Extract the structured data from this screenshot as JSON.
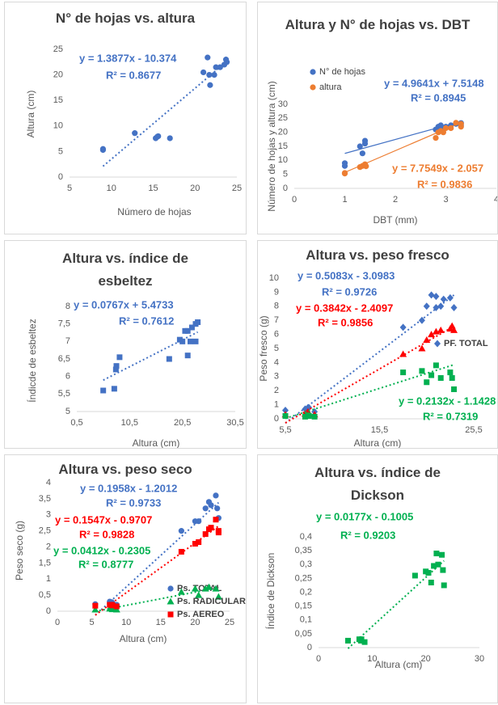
{
  "chart_data": [
    {
      "type": "scatter",
      "title": "N° de hojas vs. altura",
      "x_label": "Número de hojas",
      "y_label": "Altura (cm)",
      "xlim": [
        5,
        25
      ],
      "ylim": [
        0,
        25
      ],
      "xticks": [
        5,
        10,
        15,
        20,
        25
      ],
      "yticks": [
        0,
        5,
        10,
        15,
        20,
        25
      ],
      "series": [
        {
          "color": "#4472c4",
          "marker": "circle",
          "x": [
            9,
            9,
            12.8,
            15.3,
            15.5,
            15.6,
            17,
            21,
            21.5,
            21.7,
            21.8,
            22.3,
            22.5,
            23,
            23.5,
            23.7,
            23.8
          ],
          "values": [
            5.5,
            5.3,
            8.6,
            7.6,
            7.9,
            8.0,
            7.6,
            20.5,
            23.4,
            20,
            18,
            20,
            21.5,
            21.5,
            22,
            23,
            22.5
          ],
          "trendline": {
            "slope": 1.3877,
            "intercept": -10.374,
            "equation": "y = 1.3877x - 10.374",
            "r2": "R² = 0.8677"
          }
        }
      ]
    },
    {
      "type": "scatter",
      "title": "Altura y N° de hojas vs. DBT",
      "x_label": "DBT (mm)",
      "y_label": "Número de hojas y altura (cm)",
      "xlim": [
        0,
        4
      ],
      "ylim": [
        0,
        30
      ],
      "xticks": [
        0,
        1,
        2,
        3,
        4
      ],
      "yticks": [
        0,
        5,
        10,
        15,
        20,
        25,
        30
      ],
      "series": [
        {
          "name": "N° de hojas",
          "color": "#4472c4",
          "marker": "circle",
          "x": [
            1,
            1,
            1.3,
            1.35,
            1.4,
            1.4,
            2.8,
            2.85,
            2.9,
            2.9,
            3,
            3.1,
            3.2,
            3.3,
            3.3
          ],
          "values": [
            9,
            8,
            15,
            12.5,
            17,
            16,
            21,
            22,
            21.5,
            22.5,
            22,
            22.5,
            23,
            22.5,
            23.3
          ],
          "trendline": {
            "slope": 4.9641,
            "intercept": 7.5148,
            "equation": "y = 4.9641x + 7.5148",
            "r2": "R² = 0.8945"
          }
        },
        {
          "name": "altura",
          "color": "#ed7d31",
          "marker": "circle",
          "x": [
            1,
            1,
            1.3,
            1.35,
            1.4,
            1.42,
            2.8,
            2.85,
            2.9,
            2.95,
            3,
            3.1,
            3.2,
            3.3,
            3.3
          ],
          "values": [
            5.5,
            5.3,
            7.6,
            8,
            8.6,
            7.9,
            18,
            20,
            20.5,
            20,
            21.5,
            21.5,
            23.4,
            22,
            23
          ],
          "trendline": {
            "slope": 7.7549,
            "intercept": -2.057,
            "equation": "y = 7.7549x - 2.057",
            "r2": "R² = 0.9836"
          }
        }
      ]
    },
    {
      "type": "scatter",
      "title": "Altura vs. índice de esbeltez",
      "x_label": "Altura (cm)",
      "y_label": "Índicde de esbeltez",
      "xlim": [
        0.5,
        30.5
      ],
      "ylim": [
        5,
        8
      ],
      "xticks": [
        {
          "value": 0.5,
          "label": "0,5"
        },
        {
          "value": 10.5,
          "label": "10,5"
        },
        {
          "value": 20.5,
          "label": "20,5"
        },
        {
          "value": 30.5,
          "label": "30,5"
        }
      ],
      "yticks": [
        5,
        {
          "value": 5.5,
          "label": "5,5"
        },
        6,
        {
          "value": 6.5,
          "label": "6,5"
        },
        7,
        {
          "value": 7.5,
          "label": "7,5"
        },
        8
      ],
      "series": [
        {
          "color": "#4472c4",
          "marker": "square",
          "x": [
            5.5,
            7.6,
            7.9,
            8.0,
            8.6,
            18,
            20,
            20.5,
            21,
            21.5,
            21.5,
            22,
            22.3,
            23,
            23.4,
            23
          ],
          "values": [
            5.6,
            5.65,
            6.2,
            6.3,
            6.55,
            6.5,
            7.05,
            7.0,
            7.3,
            7.3,
            6.6,
            7.0,
            7.4,
            7.5,
            7.55,
            7.0
          ],
          "trendline": {
            "slope": 0.0767,
            "intercept": 5.4733,
            "equation": "y = 0.0767x + 5.4733",
            "r2": "R² = 0.7612"
          }
        }
      ]
    },
    {
      "type": "scatter",
      "title": "Altura vs. peso fresco",
      "x_label": "Altura (cm)",
      "y_label": "Peso fresco (g)",
      "xlim": [
        5.5,
        25.5
      ],
      "ylim": [
        0,
        10
      ],
      "xticks": [
        {
          "value": 5.5,
          "label": "5,5"
        },
        {
          "value": 15.5,
          "label": "15,5"
        },
        {
          "value": 25.5,
          "label": "25,5"
        }
      ],
      "yticks": [
        0,
        1,
        2,
        3,
        4,
        5,
        6,
        7,
        8,
        9,
        10
      ],
      "series": [
        {
          "name": "PF. TOTAL",
          "color": "#4472c4",
          "marker": "diamond",
          "x": [
            5.5,
            7.6,
            7.9,
            8.0,
            8.6,
            18,
            20,
            20.5,
            21,
            21.5,
            21.5,
            22,
            22.3,
            23,
            23.4
          ],
          "values": [
            0.6,
            0.7,
            0.8,
            0.8,
            0.5,
            6.5,
            7.0,
            8.0,
            8.8,
            8.7,
            7.9,
            8.0,
            8.5,
            8.6,
            7.9
          ],
          "trendline": {
            "slope": 0.5083,
            "intercept": -3.0983,
            "equation": "y = 0.5083x - 3.0983",
            "r2": "R² = 0.9726"
          }
        },
        {
          "color": "#ff0000",
          "marker": "triangle",
          "x": [
            5.5,
            7.6,
            7.9,
            8,
            8.6,
            18,
            20,
            20.5,
            21,
            21.5,
            22,
            23,
            23.2,
            23.4
          ],
          "values": [
            0.3,
            0.35,
            0.5,
            0.4,
            0.3,
            4.6,
            5.0,
            5.6,
            6.0,
            6.2,
            6.3,
            6.4,
            6.6,
            6.3
          ],
          "trendline": {
            "slope": 0.3842,
            "intercept": -2.4097,
            "equation": "y = 0.3842x - 2.4097",
            "r2": "R² = 0.9856"
          }
        },
        {
          "color": "#00b050",
          "marker": "square",
          "x": [
            5.5,
            7.6,
            7.9,
            8,
            8.6,
            18,
            20,
            20.5,
            21,
            21.5,
            22,
            23,
            23.2,
            23.4
          ],
          "values": [
            0.2,
            0.15,
            0.25,
            0.2,
            0.15,
            3.3,
            3.4,
            2.6,
            3.1,
            3.8,
            2.9,
            3.3,
            2.9,
            2.1
          ],
          "trendline": {
            "slope": 0.2132,
            "intercept": -1.1428,
            "equation": "y = 0.2132x - 1.1428",
            "r2": "R² = 0.7319"
          }
        }
      ]
    },
    {
      "type": "scatter",
      "title": "Altura vs. peso seco",
      "x_label": "Altura (cm)",
      "y_label": "Peso seco (g)",
      "xlim": [
        0,
        25
      ],
      "ylim": [
        0,
        4
      ],
      "xticks": [
        0,
        5,
        10,
        15,
        20,
        25
      ],
      "yticks": [
        0,
        {
          "value": 0.5,
          "label": "0,5"
        },
        1,
        {
          "value": 1.5,
          "label": "1,5"
        },
        2,
        {
          "value": 2.5,
          "label": "2,5"
        },
        3,
        {
          "value": 3.5,
          "label": "3,5"
        },
        4
      ],
      "series": [
        {
          "name": "Ps. TOTAL",
          "color": "#4472c4",
          "marker": "circle",
          "x": [
            5.5,
            7.6,
            7.9,
            8,
            8.6,
            18,
            20,
            20.5,
            21.5,
            22,
            22.3,
            23,
            23.2,
            23.4
          ],
          "values": [
            0.22,
            0.3,
            0.28,
            0.25,
            0.2,
            2.5,
            2.8,
            2.8,
            3.2,
            3.4,
            3.3,
            3.6,
            3.2,
            2.9
          ],
          "trendline": {
            "slope": 0.1958,
            "intercept": -1.2012,
            "equation": "y = 0.1958x - 1.2012",
            "r2": "R² = 0.9733"
          }
        },
        {
          "name": "Ps. RADICULAR",
          "color": "#00b050",
          "marker": "triangle",
          "x": [
            5.5,
            7.6,
            7.9,
            8,
            8.6,
            18,
            20,
            20.5,
            21.5,
            22,
            23,
            23.4
          ],
          "values": [
            0.05,
            0.08,
            0.1,
            0.06,
            0.05,
            0.6,
            0.7,
            0.5,
            0.7,
            0.75,
            0.7,
            0.45
          ],
          "trendline": {
            "slope": 0.0412,
            "intercept": -0.2305,
            "equation": "y = 0.0412x - 0.2305",
            "r2": "R² = 0.8777"
          }
        },
        {
          "name": "Ps. AEREO",
          "color": "#ff0000",
          "marker": "square",
          "x": [
            5.5,
            7.6,
            7.9,
            8,
            8.6,
            18,
            20,
            20.5,
            21.5,
            22,
            22.3,
            23,
            23.4,
            23.4
          ],
          "values": [
            0.17,
            0.2,
            0.2,
            0.18,
            0.15,
            1.85,
            2.1,
            2.15,
            2.4,
            2.55,
            2.6,
            2.85,
            2.5,
            2.45
          ],
          "trendline": {
            "slope": 0.1547,
            "intercept": -0.9707,
            "equation": "y = 0.1547x - 0.9707",
            "r2": "R² = 0.9828"
          }
        }
      ]
    },
    {
      "type": "scatter",
      "title": "Altura vs. índice de Dickson",
      "x_label": "Altura (cm)",
      "y_label": "Índice de Dickson",
      "xlim": [
        0,
        30
      ],
      "ylim": [
        0,
        0.4
      ],
      "xticks": [
        0,
        10,
        20,
        30
      ],
      "yticks": [
        0,
        {
          "value": 0.05,
          "label": "0,05"
        },
        {
          "value": 0.1,
          "label": "0,1"
        },
        {
          "value": 0.15,
          "label": "0,15"
        },
        {
          "value": 0.2,
          "label": "0,2"
        },
        {
          "value": 0.25,
          "label": "0,25"
        },
        {
          "value": 0.3,
          "label": "0,3"
        },
        {
          "value": 0.35,
          "label": "0,35"
        },
        {
          "value": 0.4,
          "label": "0,4"
        }
      ],
      "series": [
        {
          "color": "#00b050",
          "marker": "square",
          "x": [
            5.5,
            7.6,
            7.9,
            8,
            8.6,
            18,
            20,
            20.5,
            21,
            21.5,
            22,
            22.3,
            23,
            23.2,
            23.4
          ],
          "values": [
            0.025,
            0.03,
            0.025,
            0.03,
            0.02,
            0.26,
            0.275,
            0.27,
            0.235,
            0.295,
            0.34,
            0.3,
            0.335,
            0.28,
            0.225
          ],
          "trendline": {
            "slope": 0.0177,
            "intercept": -0.1005,
            "equation": "y = 0.0177x - 0.1005",
            "r2": "R² = 0.9203"
          }
        }
      ]
    }
  ]
}
